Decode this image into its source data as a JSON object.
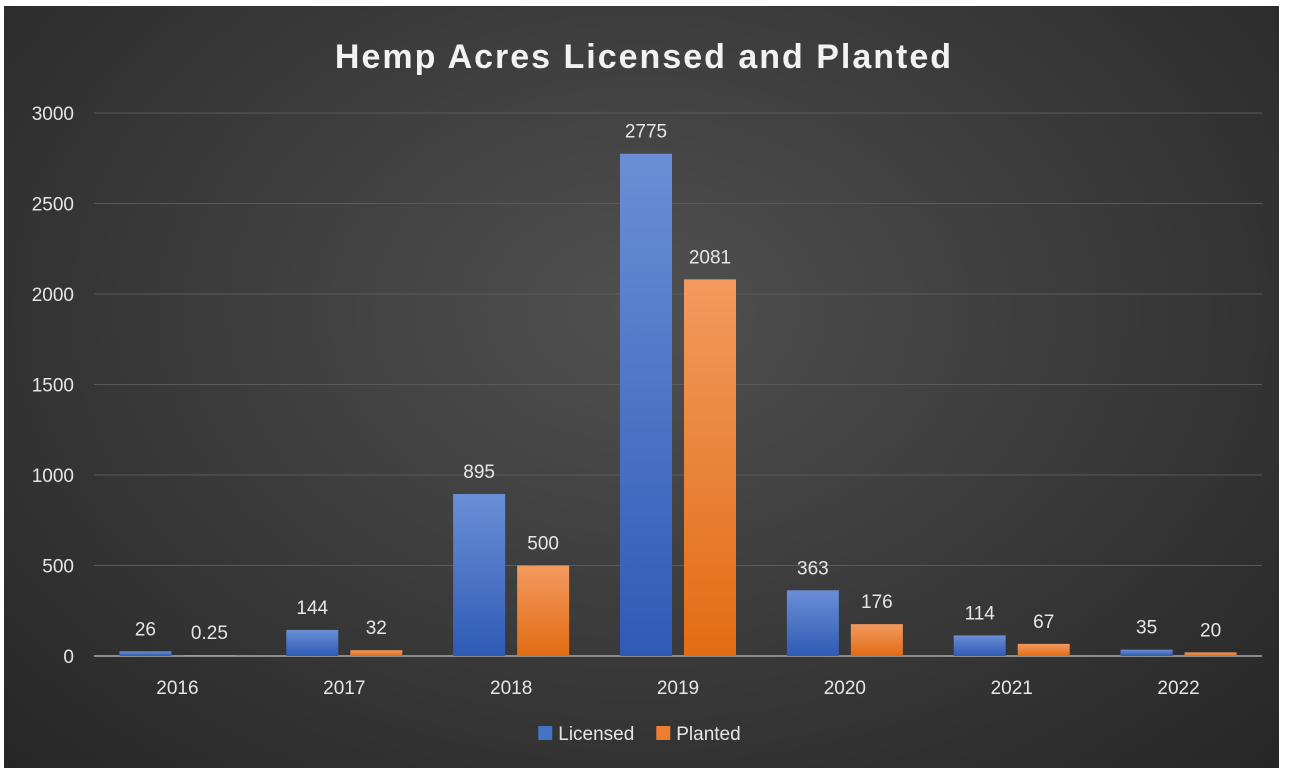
{
  "chart_data": {
    "type": "bar",
    "title": "Hemp Acres Licensed and Planted",
    "xlabel": "",
    "ylabel": "",
    "categories": [
      "2016",
      "2017",
      "2018",
      "2019",
      "2020",
      "2021",
      "2022"
    ],
    "series": [
      {
        "name": "Licensed",
        "values": [
          26,
          144,
          895,
          2775,
          363,
          114,
          35
        ],
        "labels": [
          "26",
          "144",
          "895",
          "2775",
          "363",
          "114",
          "35"
        ],
        "color": "#4472c4"
      },
      {
        "name": "Planted",
        "values": [
          0.25,
          32,
          500,
          2081,
          176,
          67,
          20
        ],
        "labels": [
          "0.25",
          "32",
          "500",
          "2081",
          "176",
          "67",
          "20"
        ],
        "color": "#ed7d31"
      }
    ],
    "ylim": [
      0,
      3000
    ],
    "yticks": [
      "0",
      "500",
      "1000",
      "1500",
      "2000",
      "2500",
      "3000"
    ],
    "grid": true,
    "legend_position": "bottom"
  }
}
